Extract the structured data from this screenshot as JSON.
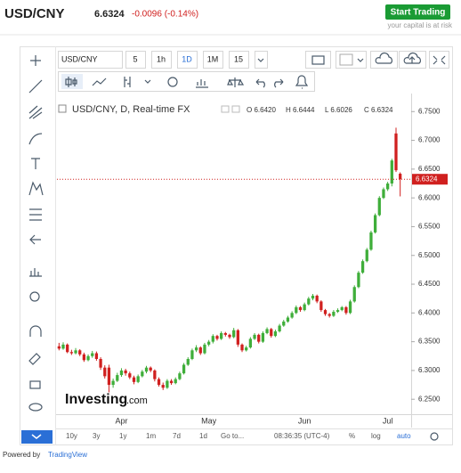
{
  "header": {
    "symbol": "USD/CNY",
    "change": "-0.0096 (-0.14%)",
    "button": "Start Trading",
    "risk_note": "your capital is at risk"
  },
  "toolbar": {
    "symbol": "USD/CNY",
    "intervals": [
      "5",
      "1h",
      "1D",
      "1M",
      "15"
    ]
  },
  "legend": {
    "title": "USD/CNY, D, Real-time FX",
    "values": [
      "O 6.6420",
      "H 6.6444",
      "L 6.6026",
      "C 6.6324"
    ]
  },
  "watermark": {
    "brand": "Investing",
    "suffix": ".com"
  },
  "bottom_bar": {
    "ranges": [
      "10y",
      "3y",
      "1y",
      "1m",
      "7d",
      "1d",
      "Go to..."
    ],
    "time": "08:36:35 (UTC-4)",
    "options": [
      "%",
      "log",
      "auto"
    ]
  },
  "footer": {
    "prefix": "Powered by",
    "link": "TradingView"
  },
  "chart_data": {
    "type": "candlestick",
    "categories": [
      null,
      null,
      null,
      null,
      null,
      null,
      null,
      null,
      null,
      null,
      null,
      null,
      null,
      null,
      null,
      "Apr",
      null,
      null,
      null,
      null,
      null,
      null,
      null,
      null,
      null,
      null,
      null,
      null,
      null,
      null,
      null,
      null,
      null,
      null,
      null,
      null,
      "May",
      null,
      null,
      null,
      null,
      null,
      null,
      null,
      null,
      null,
      null,
      null,
      null,
      null,
      null,
      null,
      null,
      null,
      null,
      null,
      null,
      null,
      null,
      "Jun",
      null,
      null,
      null,
      null,
      null,
      null,
      null,
      null,
      null,
      null,
      null,
      null,
      null,
      null,
      null,
      null,
      null,
      null,
      null,
      "Jul",
      null,
      null,
      null
    ],
    "ohlc": [
      [
        6.342,
        6.348,
        6.335,
        6.338
      ],
      [
        6.338,
        6.349,
        6.336,
        6.345
      ],
      [
        6.345,
        6.347,
        6.33,
        6.332
      ],
      [
        6.332,
        6.336,
        6.327,
        6.33
      ],
      [
        6.33,
        6.339,
        6.328,
        6.335
      ],
      [
        6.335,
        6.337,
        6.325,
        6.328
      ],
      [
        6.328,
        6.331,
        6.315,
        6.318
      ],
      [
        6.318,
        6.328,
        6.316,
        6.325
      ],
      [
        6.325,
        6.334,
        6.322,
        6.33
      ],
      [
        6.33,
        6.333,
        6.317,
        6.32
      ],
      [
        6.32,
        6.323,
        6.301,
        6.305
      ],
      [
        6.305,
        6.309,
        6.286,
        6.29
      ],
      [
        6.305,
        6.31,
        6.262,
        6.275
      ],
      [
        6.275,
        6.286,
        6.27,
        6.282
      ],
      [
        6.282,
        6.296,
        6.28,
        6.292
      ],
      [
        6.292,
        6.304,
        6.289,
        6.3
      ],
      [
        6.3,
        6.303,
        6.291,
        6.295
      ],
      [
        6.295,
        6.298,
        6.285,
        6.288
      ],
      [
        6.288,
        6.291,
        6.276,
        6.28
      ],
      [
        6.28,
        6.293,
        6.278,
        6.29
      ],
      [
        6.29,
        6.301,
        6.288,
        6.298
      ],
      [
        6.298,
        6.308,
        6.295,
        6.305
      ],
      [
        6.305,
        6.307,
        6.297,
        6.3
      ],
      [
        6.3,
        6.302,
        6.281,
        6.285
      ],
      [
        6.285,
        6.288,
        6.272,
        6.275
      ],
      [
        6.275,
        6.279,
        6.266,
        6.27
      ],
      [
        6.27,
        6.285,
        6.268,
        6.282
      ],
      [
        6.282,
        6.285,
        6.275,
        6.278
      ],
      [
        6.278,
        6.288,
        6.276,
        6.285
      ],
      [
        6.285,
        6.298,
        6.283,
        6.295
      ],
      [
        6.295,
        6.313,
        6.293,
        6.31
      ],
      [
        6.31,
        6.323,
        6.308,
        6.32
      ],
      [
        6.32,
        6.338,
        6.318,
        6.335
      ],
      [
        6.335,
        6.344,
        6.332,
        6.34
      ],
      [
        6.34,
        6.342,
        6.327,
        6.33
      ],
      [
        6.33,
        6.348,
        6.328,
        6.345
      ],
      [
        6.345,
        6.353,
        6.342,
        6.35
      ],
      [
        6.35,
        6.363,
        6.347,
        6.36
      ],
      [
        6.36,
        6.362,
        6.352,
        6.355
      ],
      [
        6.355,
        6.368,
        6.353,
        6.365
      ],
      [
        6.365,
        6.367,
        6.359,
        6.362
      ],
      [
        6.362,
        6.364,
        6.355,
        6.358
      ],
      [
        6.358,
        6.374,
        6.356,
        6.37
      ],
      [
        6.37,
        6.372,
        6.341,
        6.345
      ],
      [
        6.345,
        6.347,
        6.332,
        6.335
      ],
      [
        6.335,
        6.343,
        6.333,
        6.34
      ],
      [
        6.34,
        6.358,
        6.338,
        6.355
      ],
      [
        6.355,
        6.365,
        6.353,
        6.362
      ],
      [
        6.362,
        6.364,
        6.347,
        6.35
      ],
      [
        6.35,
        6.368,
        6.348,
        6.365
      ],
      [
        6.365,
        6.375,
        6.363,
        6.372
      ],
      [
        6.372,
        6.374,
        6.357,
        6.36
      ],
      [
        6.36,
        6.371,
        6.358,
        6.368
      ],
      [
        6.368,
        6.381,
        6.366,
        6.378
      ],
      [
        6.378,
        6.388,
        6.376,
        6.385
      ],
      [
        6.385,
        6.395,
        6.383,
        6.392
      ],
      [
        6.392,
        6.403,
        6.39,
        6.4
      ],
      [
        6.4,
        6.413,
        6.398,
        6.41
      ],
      [
        6.41,
        6.412,
        6.402,
        6.405
      ],
      [
        6.405,
        6.418,
        6.403,
        6.415
      ],
      [
        6.415,
        6.428,
        6.413,
        6.425
      ],
      [
        6.425,
        6.433,
        6.422,
        6.43
      ],
      [
        6.43,
        6.432,
        6.417,
        6.42
      ],
      [
        6.42,
        6.422,
        6.402,
        6.405
      ],
      [
        6.405,
        6.407,
        6.395,
        6.398
      ],
      [
        6.398,
        6.4,
        6.392,
        6.395
      ],
      [
        6.395,
        6.405,
        6.393,
        6.402
      ],
      [
        6.402,
        6.408,
        6.4,
        6.405
      ],
      [
        6.405,
        6.412,
        6.403,
        6.41
      ],
      [
        6.41,
        6.412,
        6.397,
        6.4
      ],
      [
        6.4,
        6.423,
        6.398,
        6.42
      ],
      [
        6.42,
        6.448,
        6.418,
        6.445
      ],
      [
        6.445,
        6.473,
        6.443,
        6.47
      ],
      [
        6.47,
        6.493,
        6.468,
        6.49
      ],
      [
        6.49,
        6.513,
        6.488,
        6.51
      ],
      [
        6.51,
        6.543,
        6.508,
        6.54
      ],
      [
        6.54,
        6.573,
        6.538,
        6.57
      ],
      [
        6.57,
        6.603,
        6.568,
        6.6
      ],
      [
        6.6,
        6.618,
        6.598,
        6.615
      ],
      [
        6.615,
        6.628,
        6.612,
        6.625
      ],
      [
        6.625,
        6.668,
        6.62,
        6.665
      ],
      [
        6.712,
        6.722,
        6.645,
        6.648
      ],
      [
        6.642,
        6.6444,
        6.6026,
        6.6324
      ]
    ],
    "up_color": "#3fae3a",
    "down_color": "#d0201f",
    "ylim": [
      6.224,
      6.769
    ],
    "yticks": [
      {
        "value": 6.25,
        "label": "6.2500"
      },
      {
        "value": 6.3,
        "label": "6.3000"
      },
      {
        "value": 6.35,
        "label": "6.3500"
      },
      {
        "value": 6.4,
        "label": "6.4000"
      },
      {
        "value": 6.45,
        "label": "6.4500"
      },
      {
        "value": 6.5,
        "label": "6.5000"
      },
      {
        "value": 6.55,
        "label": "6.5500"
      },
      {
        "value": 6.6,
        "label": "6.6000"
      },
      {
        "value": 6.65,
        "label": "6.6500"
      },
      {
        "value": 6.7,
        "label": "6.7000"
      },
      {
        "value": 6.75,
        "label": "6.7500"
      }
    ],
    "last_price_line": true
  }
}
